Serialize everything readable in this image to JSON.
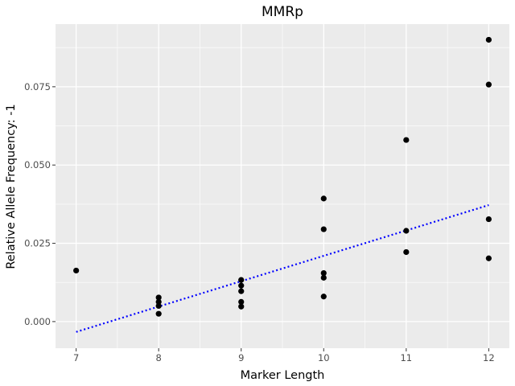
{
  "chart_data": {
    "type": "scatter",
    "title": "MMRp",
    "xlabel": "Marker Length",
    "ylabel": "Relative Allele Frequency: -1",
    "xlim": [
      6.75,
      12.25
    ],
    "ylim": [
      -0.0085,
      0.095
    ],
    "x_ticks": [
      7,
      8,
      9,
      10,
      11,
      12
    ],
    "y_ticks": [
      0.0,
      0.025,
      0.05,
      0.075
    ],
    "y_tick_labels": [
      "0.000",
      "0.025",
      "0.050",
      "0.075"
    ],
    "grid": true,
    "panel_color": "#EBEBEB",
    "grid_color": "#FFFFFF",
    "point_color": "#000000",
    "points": [
      {
        "x": 7,
        "y": 0.0163
      },
      {
        "x": 8,
        "y": 0.0077
      },
      {
        "x": 8,
        "y": 0.0063
      },
      {
        "x": 8,
        "y": 0.005
      },
      {
        "x": 8,
        "y": 0.0025
      },
      {
        "x": 9,
        "y": 0.0133
      },
      {
        "x": 9,
        "y": 0.0115
      },
      {
        "x": 9,
        "y": 0.0097
      },
      {
        "x": 9,
        "y": 0.0063
      },
      {
        "x": 9,
        "y": 0.0048
      },
      {
        "x": 10,
        "y": 0.0393
      },
      {
        "x": 10,
        "y": 0.0295
      },
      {
        "x": 10,
        "y": 0.0155
      },
      {
        "x": 10,
        "y": 0.014
      },
      {
        "x": 10,
        "y": 0.008
      },
      {
        "x": 11,
        "y": 0.058
      },
      {
        "x": 11,
        "y": 0.029
      },
      {
        "x": 11,
        "y": 0.0222
      },
      {
        "x": 12,
        "y": 0.09
      },
      {
        "x": 12,
        "y": 0.0757
      },
      {
        "x": 12,
        "y": 0.0327
      },
      {
        "x": 12,
        "y": 0.0202
      }
    ],
    "trend_line": {
      "style": "dotted",
      "color": "#0000FF",
      "x": [
        7,
        12
      ],
      "y": [
        -0.0033,
        0.0372
      ]
    }
  }
}
